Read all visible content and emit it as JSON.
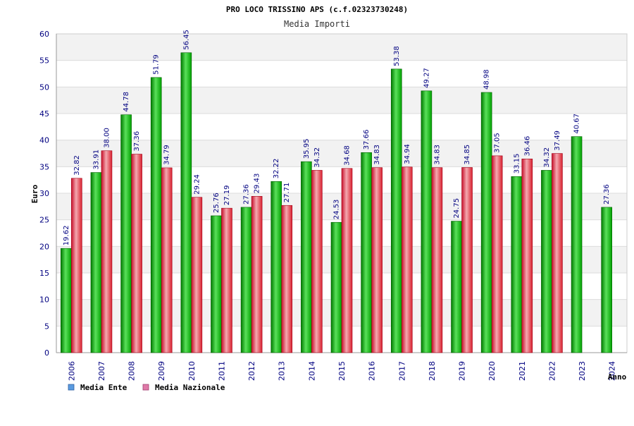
{
  "chart_data": {
    "type": "bar",
    "title": "PRO LOCO TRISSINO APS (c.f.02323730248)",
    "subtitle": "Media Importi",
    "ylabel": "Euro",
    "xlabel": "Anno",
    "ylim": [
      0,
      60
    ],
    "yticks": [
      0,
      5,
      10,
      15,
      20,
      25,
      30,
      35,
      40,
      45,
      50,
      55,
      60
    ],
    "grid": true,
    "legend_position": "bottom-left",
    "categories": [
      "2006",
      "2007",
      "2008",
      "2009",
      "2010",
      "2011",
      "2012",
      "2013",
      "2014",
      "2015",
      "2016",
      "2017",
      "2018",
      "2019",
      "2020",
      "2021",
      "2022",
      "2023",
      "2024"
    ],
    "series": [
      {
        "name": "Media Ente",
        "color": "#00b000",
        "legend_color": "#5a9be0",
        "values": [
          19.62,
          33.91,
          44.78,
          51.79,
          56.45,
          25.76,
          27.36,
          32.22,
          35.95,
          24.53,
          37.66,
          53.38,
          49.27,
          24.75,
          48.98,
          33.15,
          34.32,
          40.67,
          27.36
        ],
        "labels": [
          "19.62",
          "33.91",
          "44.78",
          "51.79",
          "56.45",
          "25.76",
          "27.36",
          "32.22",
          "35.95",
          "24.53",
          "37.66",
          "53.38",
          "49.27",
          "24.75",
          "48.98",
          "33.15",
          "34.32",
          "40.67",
          "27.36"
        ]
      },
      {
        "name": "Media Nazionale",
        "color": "#e0303a",
        "legend_color": "#e07aa8",
        "values": [
          32.82,
          38.0,
          37.36,
          34.79,
          29.24,
          27.19,
          29.43,
          27.71,
          34.32,
          34.68,
          34.83,
          34.94,
          34.83,
          34.85,
          37.05,
          36.46,
          37.49,
          null,
          null
        ],
        "labels": [
          "32.82",
          "38.00",
          "37.36",
          "34.79",
          "29.24",
          "27.19",
          "29.43",
          "27.71",
          "34.32",
          "34.68",
          "34.83",
          "34.94",
          "34.83",
          "34.85",
          "37.05",
          "36.46",
          "37.49",
          "",
          ""
        ]
      }
    ]
  }
}
